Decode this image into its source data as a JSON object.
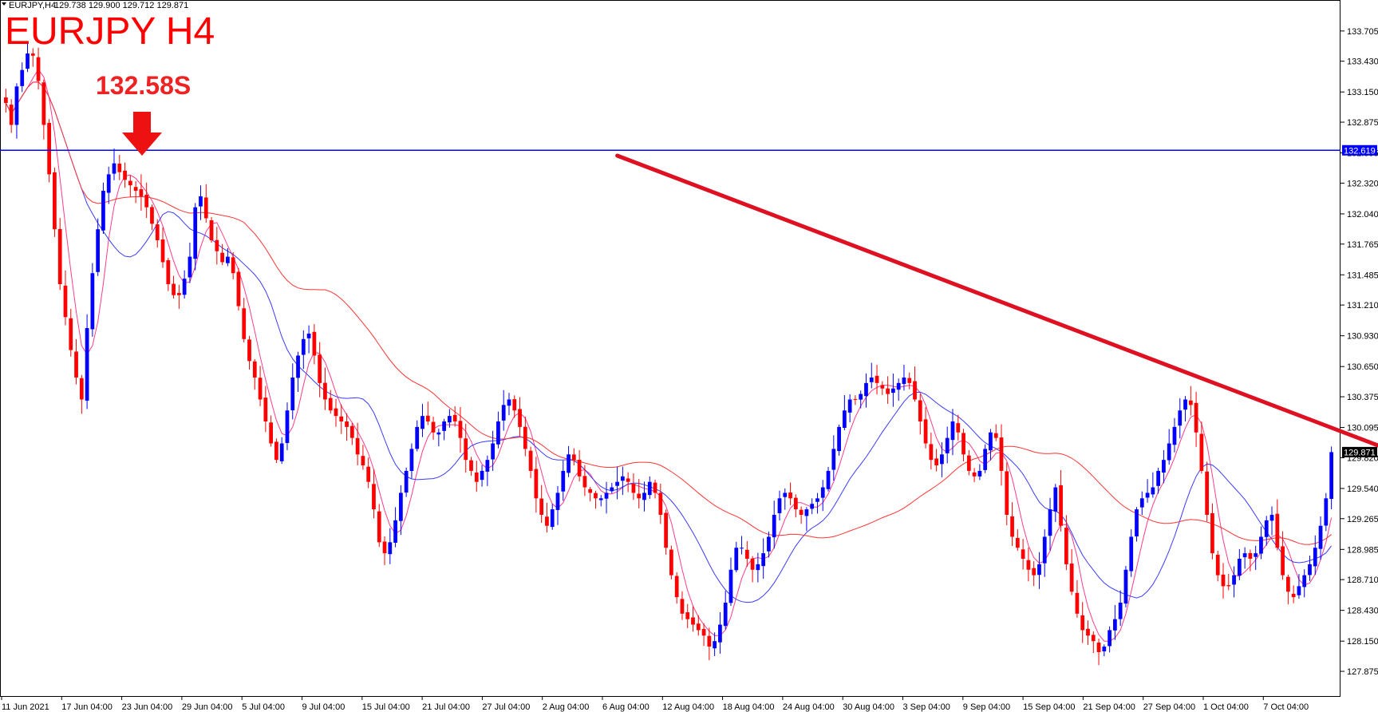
{
  "header": {
    "symbol": "EURJPY,H4",
    "ohlc": "129.738 129.900 129.712 129.871"
  },
  "title": "EURJPY H4",
  "annotation": {
    "text": "132.58S",
    "arrow_price": 132.58
  },
  "colors": {
    "up_candle": "#0000ff",
    "down_candle": "#ff0000",
    "ma_fast": "#ff3b8a",
    "ma_mid": "#3b3bff",
    "ma_slow": "#ff3333",
    "resistance": "#0000ff",
    "trendline": "#dd1122",
    "title": "#ff0000",
    "current_price_bg": "#000000"
  },
  "chart_data": {
    "type": "candlestick",
    "y_range": [
      127.65,
      133.9
    ],
    "y_ticks": [
      "133.705",
      "133.430",
      "133.150",
      "132.875",
      "132.595",
      "132.320",
      "132.040",
      "131.765",
      "131.485",
      "131.210",
      "130.930",
      "130.650",
      "130.375",
      "130.095",
      "129.820",
      "129.540",
      "129.265",
      "128.985",
      "128.710",
      "128.430",
      "128.150",
      "127.875"
    ],
    "x_labels": [
      "11 Jun 2021",
      "17 Jun 04:00",
      "23 Jun 04:00",
      "29 Jun 04:00",
      "5 Jul 04:00",
      "9 Jul 04:00",
      "15 Jul 04:00",
      "21 Jul 04:00",
      "27 Jul 04:00",
      "2 Aug 04:00",
      "6 Aug 04:00",
      "12 Aug 04:00",
      "18 Aug 04:00",
      "24 Aug 04:00",
      "30 Aug 04:00",
      "3 Sep 04:00",
      "9 Sep 04:00",
      "15 Sep 04:00",
      "21 Sep 04:00",
      "27 Sep 04:00",
      "1 Oct 04:00",
      "7 Oct 04:00"
    ],
    "resistance_level": "132.619",
    "resistance_value": 132.619,
    "current_price": "129.871",
    "current_value": 129.871,
    "trendline": {
      "start": [
        113,
        132.57
      ],
      "end": [
        316,
        128.7
      ]
    },
    "closes": [
      133.05,
      132.85,
      133.2,
      133.35,
      133.5,
      133.48,
      133.25,
      132.85,
      132.4,
      131.9,
      131.4,
      131.1,
      130.8,
      130.55,
      130.35,
      131.0,
      131.5,
      131.9,
      132.25,
      132.4,
      132.5,
      132.42,
      132.35,
      132.3,
      132.25,
      132.2,
      132.1,
      131.95,
      131.8,
      131.6,
      131.4,
      131.3,
      131.3,
      131.45,
      131.65,
      132.1,
      132.2,
      132.0,
      131.8,
      131.7,
      131.6,
      131.65,
      131.5,
      131.2,
      130.9,
      130.7,
      130.55,
      130.35,
      130.15,
      129.95,
      129.8,
      129.95,
      130.25,
      130.55,
      130.75,
      130.9,
      130.95,
      130.75,
      130.5,
      130.35,
      130.25,
      130.2,
      130.15,
      130.1,
      130.0,
      129.85,
      129.75,
      129.6,
      129.35,
      129.05,
      128.95,
      129.05,
      129.25,
      129.5,
      129.7,
      129.9,
      130.1,
      130.2,
      130.15,
      130.05,
      130.05,
      130.15,
      130.2,
      130.15,
      130.0,
      129.8,
      129.7,
      129.6,
      129.7,
      129.8,
      129.95,
      130.15,
      130.3,
      130.35,
      130.25,
      130.1,
      129.9,
      129.7,
      129.45,
      129.3,
      129.2,
      129.35,
      129.5,
      129.7,
      129.85,
      129.8,
      129.65,
      129.55,
      129.5,
      129.45,
      129.45,
      129.5,
      129.55,
      129.6,
      129.65,
      129.6,
      129.5,
      129.45,
      129.5,
      129.6,
      129.5,
      129.3,
      129.0,
      128.75,
      128.55,
      128.4,
      128.35,
      128.3,
      128.25,
      128.2,
      128.1,
      128.15,
      128.3,
      128.5,
      128.8,
      129.0,
      129.0,
      128.9,
      128.8,
      128.85,
      128.95,
      129.1,
      129.3,
      129.45,
      129.5,
      129.45,
      129.35,
      129.3,
      129.35,
      129.4,
      129.45,
      129.55,
      129.7,
      129.9,
      130.1,
      130.25,
      130.35,
      130.35,
      130.4,
      130.5,
      130.55,
      130.5,
      130.45,
      130.4,
      130.45,
      130.5,
      130.55,
      130.5,
      130.35,
      130.15,
      129.95,
      129.8,
      129.75,
      129.85,
      130.0,
      130.15,
      130.05,
      129.85,
      129.7,
      129.65,
      129.7,
      129.9,
      130.05,
      130.0,
      129.7,
      129.3,
      129.1,
      129.0,
      128.9,
      128.8,
      128.75,
      128.85,
      129.1,
      129.35,
      129.55,
      129.2,
      128.85,
      128.6,
      128.4,
      128.25,
      128.2,
      128.15,
      128.05,
      128.1,
      128.25,
      128.35,
      128.5,
      128.8,
      129.1,
      129.35,
      129.45,
      129.5,
      129.55,
      129.7,
      129.8,
      129.95,
      130.1,
      130.25,
      130.35,
      130.3,
      130.05,
      129.7,
      129.3,
      128.95,
      128.75,
      128.65,
      128.65,
      128.75,
      128.9,
      128.95,
      128.9,
      128.95,
      129.1,
      129.25,
      129.3,
      129.0,
      128.75,
      128.6,
      128.55,
      128.65,
      128.75,
      128.85,
      129.0,
      129.2,
      129.45,
      129.871
    ],
    "series_notes": [
      "candles",
      "MA fast",
      "MA mid",
      "MA slow"
    ]
  }
}
